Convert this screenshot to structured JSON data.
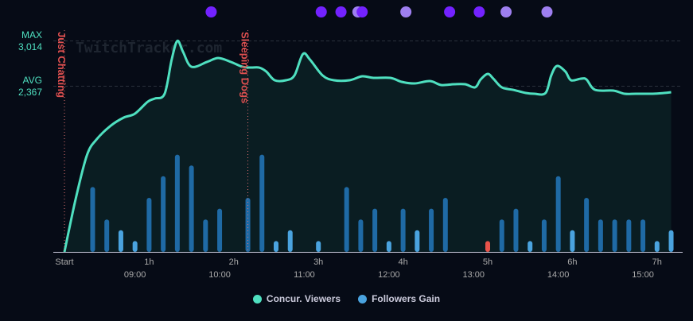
{
  "chart_data": {
    "type": "bar+line",
    "watermark": "TwitchTracker.com",
    "y_markers": [
      {
        "label": "MAX",
        "value": 3014,
        "value_text": "3,014"
      },
      {
        "label": "AVG",
        "value": 2367,
        "value_text": "2,367"
      }
    ],
    "x_range_minutes": [
      0,
      430
    ],
    "x_ticks_elapsed": [
      {
        "m": 0,
        "label": "Start"
      },
      {
        "m": 60,
        "label": "1h"
      },
      {
        "m": 120,
        "label": "2h"
      },
      {
        "m": 180,
        "label": "3h"
      },
      {
        "m": 240,
        "label": "4h"
      },
      {
        "m": 300,
        "label": "5h"
      },
      {
        "m": 360,
        "label": "6h"
      },
      {
        "m": 420,
        "label": "7h"
      }
    ],
    "x_ticks_clock": [
      {
        "m": 50,
        "label": "09:00"
      },
      {
        "m": 110,
        "label": "10:00"
      },
      {
        "m": 170,
        "label": "11:00"
      },
      {
        "m": 230,
        "label": "12:00"
      },
      {
        "m": 290,
        "label": "13:00"
      },
      {
        "m": 350,
        "label": "14:00"
      },
      {
        "m": 410,
        "label": "15:00"
      }
    ],
    "game_markers": [
      {
        "m": 0,
        "label": "Just Chatting"
      },
      {
        "m": 130,
        "label": "Sleeping Dogs"
      }
    ],
    "top_dots": [
      {
        "m": 104,
        "color": "#7322ff"
      },
      {
        "m": 182,
        "color": "#7322ff"
      },
      {
        "m": 196,
        "color": "#7322ff"
      },
      {
        "m": 208,
        "color": "#9e7ff0"
      },
      {
        "m": 211,
        "color": "#7322ff"
      },
      {
        "m": 242,
        "color": "#9e7ff0"
      },
      {
        "m": 273,
        "color": "#7322ff"
      },
      {
        "m": 294,
        "color": "#7322ff"
      },
      {
        "m": 313,
        "color": "#9e7ff0"
      },
      {
        "m": 342,
        "color": "#9e7ff0"
      }
    ],
    "series": [
      {
        "name": "Concur. Viewers",
        "color": "#4fe0c0",
        "points": [
          [
            0,
            0
          ],
          [
            8,
            760
          ],
          [
            16,
            1385
          ],
          [
            23,
            1612
          ],
          [
            33,
            1805
          ],
          [
            42,
            1918
          ],
          [
            50,
            1975
          ],
          [
            59,
            2145
          ],
          [
            64,
            2190
          ],
          [
            71,
            2259
          ],
          [
            76,
            2747
          ],
          [
            80,
            3014
          ],
          [
            84,
            2860
          ],
          [
            90,
            2645
          ],
          [
            101,
            2713
          ],
          [
            109,
            2770
          ],
          [
            118,
            2713
          ],
          [
            126,
            2645
          ],
          [
            132,
            2633
          ],
          [
            138,
            2633
          ],
          [
            143,
            2577
          ],
          [
            149,
            2452
          ],
          [
            157,
            2452
          ],
          [
            163,
            2520
          ],
          [
            169,
            2826
          ],
          [
            174,
            2747
          ],
          [
            183,
            2520
          ],
          [
            191,
            2452
          ],
          [
            202,
            2452
          ],
          [
            211,
            2508
          ],
          [
            219,
            2486
          ],
          [
            231,
            2486
          ],
          [
            239,
            2429
          ],
          [
            248,
            2406
          ],
          [
            259,
            2440
          ],
          [
            267,
            2384
          ],
          [
            276,
            2395
          ],
          [
            284,
            2395
          ],
          [
            291,
            2350
          ],
          [
            295,
            2463
          ],
          [
            300,
            2542
          ],
          [
            304,
            2474
          ],
          [
            310,
            2350
          ],
          [
            318,
            2315
          ],
          [
            327,
            2270
          ],
          [
            333,
            2259
          ],
          [
            341,
            2270
          ],
          [
            345,
            2520
          ],
          [
            349,
            2656
          ],
          [
            355,
            2577
          ],
          [
            359,
            2452
          ],
          [
            366,
            2474
          ],
          [
            370,
            2463
          ],
          [
            376,
            2315
          ],
          [
            389,
            2304
          ],
          [
            397,
            2259
          ],
          [
            405,
            2259
          ],
          [
            417,
            2259
          ],
          [
            425,
            2270
          ],
          [
            430,
            2281
          ]
        ]
      },
      {
        "name": "Followers Gain",
        "color": "#4aa3df",
        "points": [
          [
            20,
            6
          ],
          [
            30,
            3
          ],
          [
            40,
            2
          ],
          [
            50,
            1
          ],
          [
            60,
            5
          ],
          [
            70,
            7
          ],
          [
            80,
            9
          ],
          [
            90,
            8
          ],
          [
            100,
            3
          ],
          [
            110,
            4
          ],
          [
            130,
            5
          ],
          [
            140,
            9
          ],
          [
            150,
            1
          ],
          [
            160,
            2
          ],
          [
            180,
            1
          ],
          [
            200,
            6
          ],
          [
            210,
            3
          ],
          [
            220,
            4
          ],
          [
            230,
            1
          ],
          [
            240,
            4
          ],
          [
            250,
            2
          ],
          [
            260,
            4
          ],
          [
            270,
            5
          ],
          [
            300,
            -1
          ],
          [
            310,
            3
          ],
          [
            320,
            4
          ],
          [
            330,
            1
          ],
          [
            340,
            3
          ],
          [
            350,
            7
          ],
          [
            360,
            2
          ],
          [
            370,
            5
          ],
          [
            380,
            3
          ],
          [
            390,
            3
          ],
          [
            400,
            3
          ],
          [
            410,
            3
          ],
          [
            420,
            1
          ],
          [
            430,
            2
          ]
        ]
      }
    ],
    "legend": "bottom-center",
    "colors": {
      "bar_dark": "#1f6aa5",
      "bar_light": "#4aa3df",
      "bar_negative": "#e8534a",
      "marker": "#e05050"
    }
  }
}
